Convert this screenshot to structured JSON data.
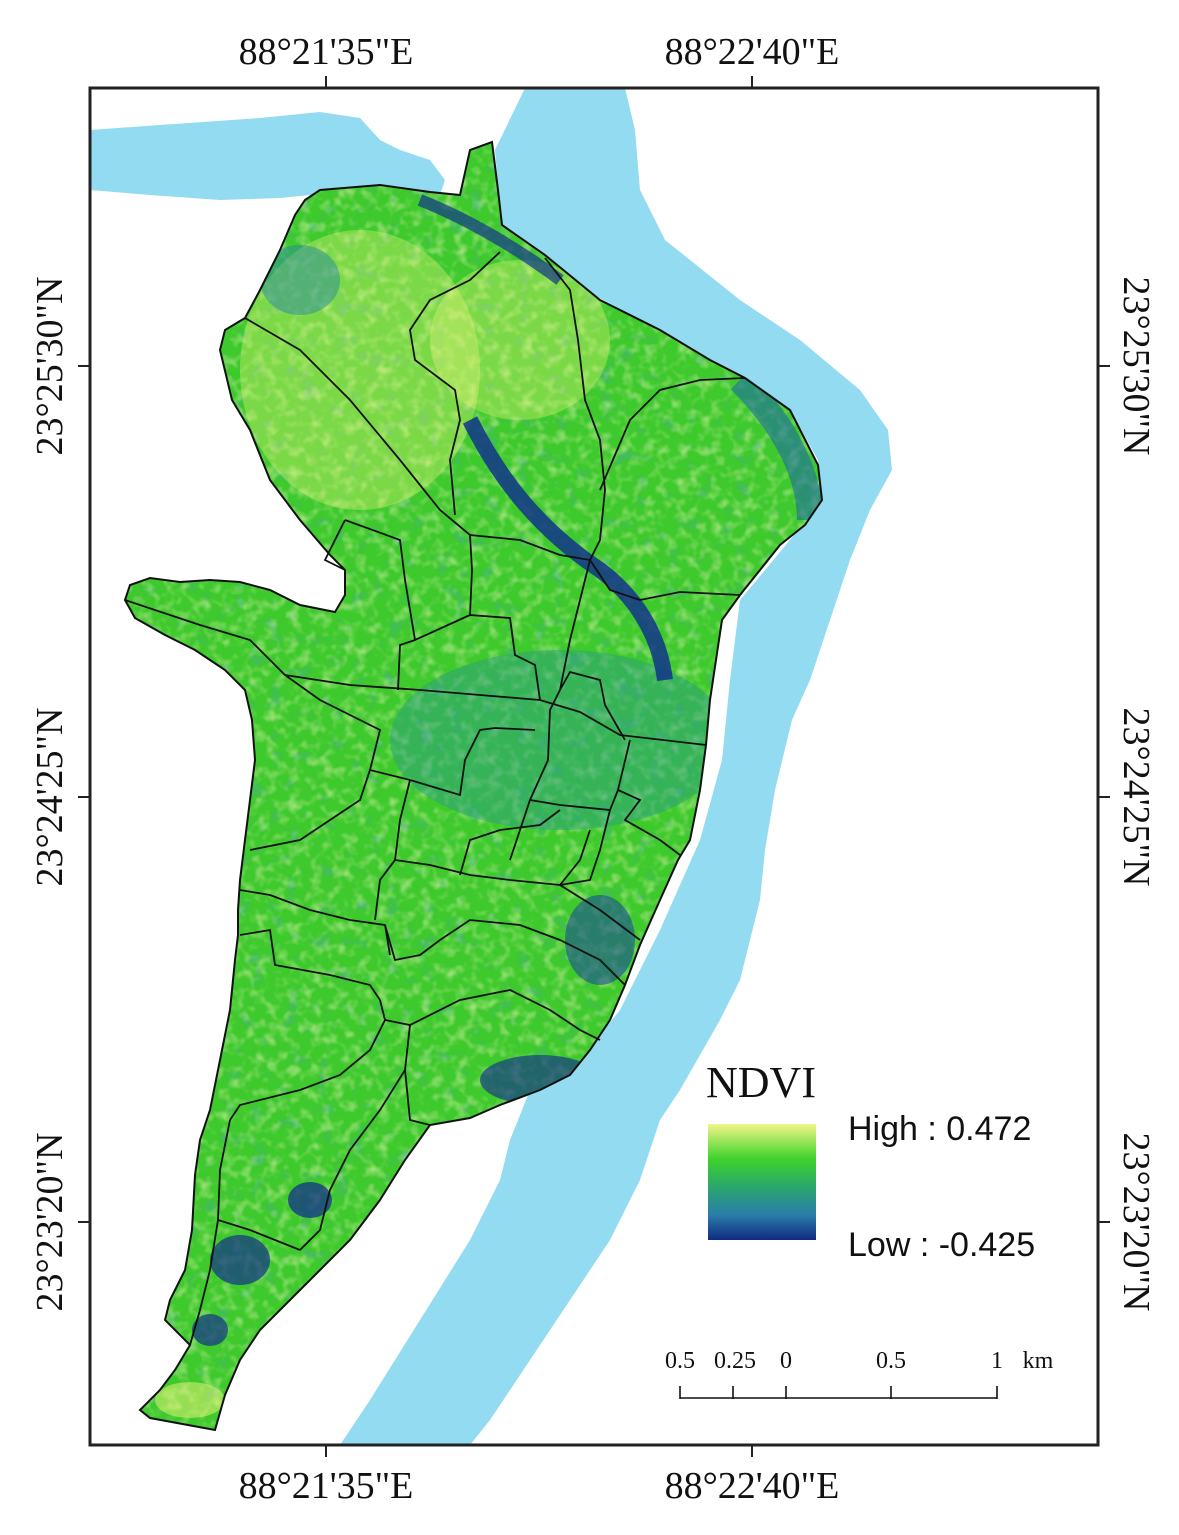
{
  "map": {
    "colors": {
      "river": "#93dbf0",
      "ward_boundary": "#111111",
      "frame": "#222222",
      "ndvi_high": "#f3f58a",
      "ndvi_mid_high": "#3ed32a",
      "ndvi_mid": "#2aa56e",
      "ndvi_mid_low": "#2a7eaa",
      "ndvi_low": "#0f2b80"
    },
    "top_labels": [
      "88°21'35\"E",
      "88°22'40\"E"
    ],
    "bottom_labels": [
      "88°21'35\"E",
      "88°22'40\"E"
    ],
    "left_labels": [
      "23°25'30\"N",
      "23°24'25\"N",
      "23°23'20\"N"
    ],
    "right_labels": [
      "23°25'30\"N",
      "23°24'25\"N",
      "23°23'20\"N"
    ]
  },
  "legend": {
    "title": "NDVI",
    "high_label": "High : 0.472",
    "low_label": "Low : -0.425"
  },
  "scale_bar": {
    "tick_labels": [
      "0.5",
      "0.25",
      "0",
      "0.5",
      "1"
    ],
    "unit": "km"
  }
}
